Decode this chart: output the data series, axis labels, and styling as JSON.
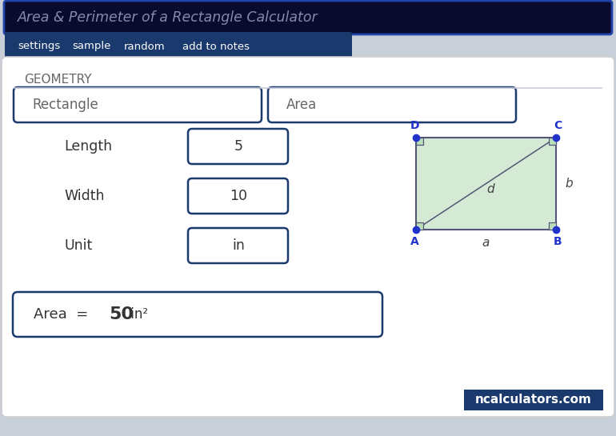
{
  "title_text": "Area & Perimeter of a Rectangle Calculator",
  "title_bg": "#0a0a2e",
  "title_text_color": "#8888aa",
  "tab_bg": "#1a3a6e",
  "tab_items": [
    "settings",
    "sample",
    "random",
    "add to notes"
  ],
  "tab_text_color": "#ffffff",
  "outer_bg": "#c8cfd8",
  "card_bg": "#ffffff",
  "card_border": "#cccccc",
  "field_border": "#1a3a6e",
  "field_bg": "#ffffff",
  "section_label": "GEOMETRY",
  "section_label_color": "#666666",
  "dropdown1": "Rectangle",
  "dropdown2": "Area",
  "label_length": "Length",
  "value_length": "5",
  "label_width": "Width",
  "value_width": "10",
  "label_unit": "Unit",
  "value_unit": "in",
  "result_text": "Area  = ",
  "result_value": "50",
  "result_suffix": " in²",
  "label_color": "#333333",
  "value_color": "#333333",
  "diag_fill": "#d4ead5",
  "diag_border": "#555577",
  "diag_dot": "#2233cc",
  "diag_label": "#2233cc",
  "diag_italic": "#444444",
  "footer_bg": "#1a3a6e",
  "footer_text": "ncalculators.com",
  "footer_text_color": "#ffffff"
}
